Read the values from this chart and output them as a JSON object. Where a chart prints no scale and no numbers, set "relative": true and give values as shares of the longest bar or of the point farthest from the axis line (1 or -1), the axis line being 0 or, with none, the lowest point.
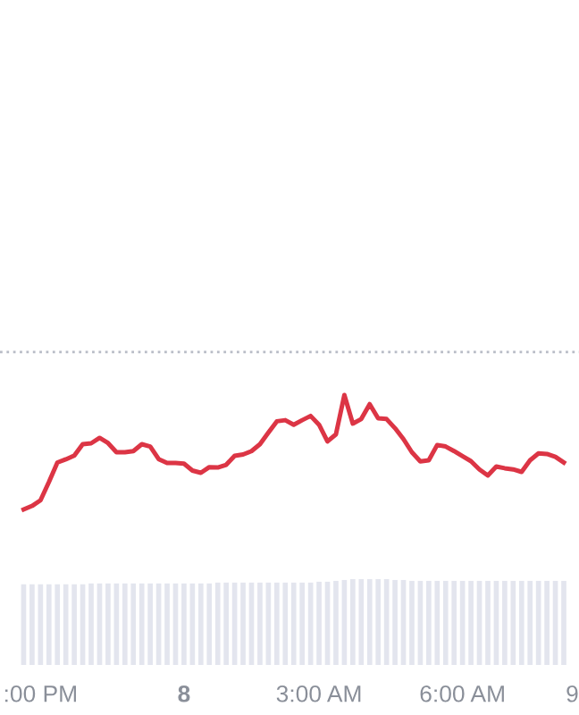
{
  "chart_data": [
    {
      "type": "line",
      "relative": true,
      "categories": [
        null,
        null,
        null,
        null,
        null,
        null,
        null,
        null,
        null,
        null,
        null,
        null,
        null,
        null,
        null,
        null,
        null,
        null,
        null,
        null,
        null,
        null,
        null,
        null,
        null,
        null,
        null,
        null,
        null,
        null,
        null,
        null,
        null,
        null,
        null,
        null,
        null,
        null,
        null,
        null,
        null,
        null,
        null,
        null,
        null,
        null,
        null,
        null,
        null,
        null,
        null,
        null,
        null,
        null,
        null,
        null,
        null,
        null,
        null,
        null,
        null,
        null,
        null,
        null,
        null,
        null
      ],
      "series": [
        {
          "color": "#dc3545",
          "values": [
            0,
            0.031,
            0.08,
            0.24,
            0.41,
            0.438,
            0.47,
            0.57,
            0.578,
            0.625,
            0.58,
            0.5,
            0.5,
            0.51,
            0.57,
            0.55,
            0.44,
            0.406,
            0.406,
            0.4,
            0.34,
            0.32,
            0.37,
            0.367,
            0.39,
            0.469,
            0.48,
            0.51,
            0.57,
            0.672,
            0.77,
            0.78,
            0.74,
            0.78,
            0.817,
            0.74,
            0.594,
            0.656,
            1,
            0.75,
            0.79,
            0.92,
            0.797,
            0.79,
            0.71,
            0.615,
            0.5,
            0.42,
            0.43,
            0.563,
            0.55,
            0.51,
            0.465,
            0.422,
            0.35,
            0.297,
            0.375,
            0.36,
            0.35,
            0.328,
            0.43,
            0.49,
            0.485,
            0.46,
            0.41,
            null
          ]
        }
      ],
      "ref_lines": [
        {
          "axis": "y",
          "value": 1.375,
          "color": "#b8bcc6",
          "line_style": "dotted"
        }
      ]
    },
    {
      "type": "bar",
      "relative": true,
      "categories": [
        null,
        null,
        ":00 PM",
        null,
        null,
        null,
        null,
        null,
        null,
        null,
        null,
        null,
        null,
        null,
        null,
        null,
        null,
        null,
        null,
        "8",
        null,
        null,
        null,
        null,
        null,
        null,
        null,
        null,
        null,
        null,
        null,
        null,
        null,
        null,
        null,
        "3:00 AM",
        null,
        null,
        null,
        null,
        null,
        null,
        null,
        null,
        null,
        null,
        null,
        null,
        null,
        null,
        null,
        null,
        "6:00 AM",
        null,
        null,
        null,
        null,
        null,
        null,
        null,
        null,
        null,
        null,
        null,
        null,
        "9"
      ],
      "series": [
        {
          "color": "#e3e5ee",
          "values": [
            0.94,
            0.94,
            0.94,
            0.94,
            0.94,
            0.94,
            0.94,
            0.94,
            0.95,
            0.95,
            0.95,
            0.95,
            0.95,
            0.95,
            0.95,
            0.95,
            0.95,
            0.95,
            0.95,
            0.95,
            0.95,
            0.95,
            0.95,
            0.96,
            0.96,
            0.96,
            0.96,
            0.96,
            0.96,
            0.96,
            0.96,
            0.96,
            0.96,
            0.96,
            0.96,
            0.97,
            0.97,
            0.98,
            0.99,
            1,
            1,
            1,
            1,
            1,
            0.99,
            0.99,
            0.98,
            0.98,
            0.98,
            0.98,
            0.98,
            0.98,
            0.98,
            0.98,
            0.98,
            0.98,
            0.98,
            0.98,
            0.98,
            0.98,
            0.98,
            0.98,
            0.98,
            0.98,
            0.98,
            null
          ]
        }
      ]
    }
  ]
}
